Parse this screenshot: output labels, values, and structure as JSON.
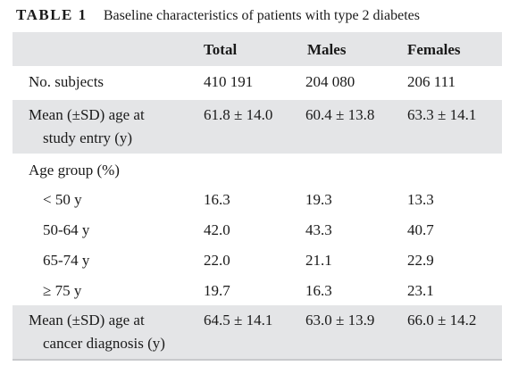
{
  "caption": {
    "label": "TABLE 1",
    "title": "Baseline characteristics of patients with type 2 diabetes"
  },
  "header": {
    "col0": "",
    "col1": "Total",
    "col2": "Males",
    "col3": "Females"
  },
  "rows": [
    {
      "label": "No. subjects",
      "total": "410 191",
      "males": "204 080",
      "females": "206 111"
    },
    {
      "label_line1": "Mean (±SD) age at",
      "label_line2": "study entry (y)",
      "total": "61.8 ± 14.0",
      "males": "60.4 ± 13.8",
      "females": "63.3 ± 14.1"
    },
    {
      "label": "Age group (%)",
      "total": "",
      "males": "",
      "females": ""
    },
    {
      "label": "< 50 y",
      "total": "16.3",
      "males": "19.3",
      "females": "13.3"
    },
    {
      "label": "50-64 y",
      "total": "42.0",
      "males": "43.3",
      "females": "40.7"
    },
    {
      "label": "65-74 y",
      "total": "22.0",
      "males": "21.1",
      "females": "22.9"
    },
    {
      "label": "≥ 75 y",
      "total": "19.7",
      "males": "16.3",
      "females": "23.1"
    },
    {
      "label_line1": "Mean (±SD) age at",
      "label_line2": "cancer diagnosis (y)",
      "total": "64.5 ± 14.1",
      "males": "63.0 ± 13.9",
      "females": "66.0 ± 14.2"
    }
  ]
}
